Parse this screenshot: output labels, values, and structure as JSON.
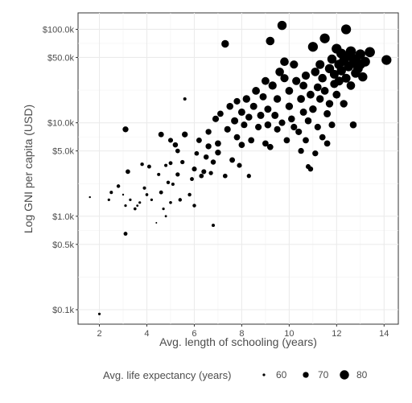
{
  "chart_data": {
    "type": "scatter",
    "xlabel": "Avg. length of schooling (years)",
    "ylabel": "Log GNI per capita (USD)",
    "x_ticks": [
      2,
      4,
      6,
      8,
      10,
      12,
      14
    ],
    "x_tick_labels": [
      "2",
      "4",
      "6",
      "8",
      "10",
      "12",
      "14"
    ],
    "y_ticks": [
      100,
      500,
      1000,
      5000,
      10000,
      50000,
      100000
    ],
    "y_tick_labels": [
      "$0.1k",
      "$0.5k",
      "$1.0k",
      "$5.0k",
      "$10.0k",
      "$50.0k",
      "$100.0k"
    ],
    "y_scale": "log",
    "xlim": [
      1.1,
      14.6
    ],
    "ylim": [
      70,
      150000
    ],
    "grid": true,
    "legend": {
      "title": "Avg. life expectancy (years)",
      "entries": [
        {
          "label": "60",
          "value": 60
        },
        {
          "label": "70",
          "value": 70
        },
        {
          "label": "80",
          "value": 80
        }
      ],
      "placement": "bottom"
    },
    "points": [
      [
        1.6,
        1600,
        58
      ],
      [
        2.0,
        90,
        60
      ],
      [
        2.4,
        1500,
        60
      ],
      [
        2.5,
        1800,
        62
      ],
      [
        2.8,
        2100,
        63
      ],
      [
        3.0,
        1700,
        58
      ],
      [
        3.1,
        1300,
        60
      ],
      [
        3.1,
        650,
        64
      ],
      [
        3.1,
        8500,
        70
      ],
      [
        3.2,
        3000,
        66
      ],
      [
        3.3,
        1500,
        60
      ],
      [
        3.5,
        1200,
        61
      ],
      [
        3.6,
        1300,
        59
      ],
      [
        3.7,
        1400,
        60
      ],
      [
        3.8,
        3600,
        63
      ],
      [
        3.9,
        2000,
        62
      ],
      [
        4.0,
        1700,
        61
      ],
      [
        4.1,
        3400,
        64
      ],
      [
        4.2,
        1500,
        60
      ],
      [
        4.4,
        850,
        57
      ],
      [
        4.5,
        2800,
        62
      ],
      [
        4.6,
        1800,
        64
      ],
      [
        4.6,
        7500,
        69
      ],
      [
        4.7,
        1200,
        60
      ],
      [
        4.8,
        1000,
        59
      ],
      [
        4.8,
        3500,
        62
      ],
      [
        4.9,
        2300,
        63
      ],
      [
        5.0,
        1400,
        61
      ],
      [
        5.0,
        3700,
        64
      ],
      [
        5.0,
        6500,
        67
      ],
      [
        5.1,
        2200,
        62
      ],
      [
        5.2,
        5800,
        68
      ],
      [
        5.3,
        2800,
        65
      ],
      [
        5.3,
        5000,
        66
      ],
      [
        5.4,
        1500,
        63
      ],
      [
        5.5,
        3800,
        65
      ],
      [
        5.6,
        7500,
        70
      ],
      [
        5.6,
        18000,
        62
      ],
      [
        5.8,
        1700,
        63
      ],
      [
        5.9,
        2500,
        64
      ],
      [
        6.0,
        1300,
        63
      ],
      [
        6.0,
        3200,
        67
      ],
      [
        6.1,
        4700,
        66
      ],
      [
        6.2,
        6500,
        69
      ],
      [
        6.3,
        2700,
        66
      ],
      [
        6.4,
        3000,
        67
      ],
      [
        6.5,
        4300,
        68
      ],
      [
        6.6,
        5600,
        70
      ],
      [
        6.6,
        8000,
        70
      ],
      [
        6.7,
        2900,
        65
      ],
      [
        6.8,
        800,
        62
      ],
      [
        6.8,
        3800,
        68
      ],
      [
        6.9,
        11000,
        72
      ],
      [
        7.0,
        4800,
        70
      ],
      [
        7.0,
        6000,
        71
      ],
      [
        7.1,
        12500,
        71
      ],
      [
        7.3,
        2700,
        66
      ],
      [
        7.3,
        70000,
        75
      ],
      [
        7.4,
        8500,
        72
      ],
      [
        7.5,
        15000,
        73
      ],
      [
        7.6,
        4000,
        69
      ],
      [
        7.7,
        10500,
        74
      ],
      [
        7.8,
        7000,
        71
      ],
      [
        7.8,
        17000,
        72
      ],
      [
        7.9,
        3500,
        67
      ],
      [
        8.0,
        5800,
        71
      ],
      [
        8.0,
        13000,
        74
      ],
      [
        8.1,
        9500,
        72
      ],
      [
        8.2,
        18000,
        75
      ],
      [
        8.3,
        2700,
        65
      ],
      [
        8.3,
        11500,
        73
      ],
      [
        8.4,
        6500,
        71
      ],
      [
        8.5,
        15000,
        74
      ],
      [
        8.6,
        22000,
        76
      ],
      [
        8.7,
        9000,
        72
      ],
      [
        8.8,
        12000,
        74
      ],
      [
        8.9,
        19000,
        74
      ],
      [
        9.0,
        6000,
        71
      ],
      [
        9.0,
        28000,
        76
      ],
      [
        9.1,
        9500,
        73
      ],
      [
        9.1,
        14000,
        74
      ],
      [
        9.2,
        5500,
        71
      ],
      [
        9.2,
        75000,
        78
      ],
      [
        9.3,
        25000,
        77
      ],
      [
        9.4,
        12000,
        74
      ],
      [
        9.5,
        8500,
        72
      ],
      [
        9.5,
        18000,
        75
      ],
      [
        9.6,
        35000,
        78
      ],
      [
        9.7,
        10000,
        72
      ],
      [
        9.7,
        110000,
        80
      ],
      [
        9.8,
        30000,
        77
      ],
      [
        9.8,
        45000,
        78
      ],
      [
        9.9,
        6500,
        71
      ],
      [
        10.0,
        15000,
        75
      ],
      [
        10.0,
        22000,
        76
      ],
      [
        10.1,
        11000,
        73
      ],
      [
        10.2,
        9000,
        72
      ],
      [
        10.2,
        42000,
        77
      ],
      [
        10.3,
        28000,
        77
      ],
      [
        10.4,
        8000,
        72
      ],
      [
        10.5,
        18000,
        76
      ],
      [
        10.5,
        5000,
        70
      ],
      [
        10.6,
        25000,
        76
      ],
      [
        10.6,
        13000,
        74
      ],
      [
        10.7,
        32000,
        77
      ],
      [
        10.7,
        6500,
        71
      ],
      [
        10.8,
        3400,
        67
      ],
      [
        10.8,
        10500,
        73
      ],
      [
        10.9,
        3200,
        68
      ],
      [
        10.9,
        20000,
        76
      ],
      [
        11.0,
        65000,
        82
      ],
      [
        11.0,
        14000,
        75
      ],
      [
        11.1,
        35000,
        78
      ],
      [
        11.1,
        4700,
        70
      ],
      [
        11.2,
        24000,
        76
      ],
      [
        11.2,
        9000,
        72
      ],
      [
        11.3,
        18000,
        75
      ],
      [
        11.3,
        42000,
        79
      ],
      [
        11.4,
        7000,
        71
      ],
      [
        11.4,
        30000,
        78
      ],
      [
        11.5,
        80000,
        82
      ],
      [
        11.5,
        22000,
        76
      ],
      [
        11.6,
        12500,
        74
      ],
      [
        11.6,
        6000,
        71
      ],
      [
        11.7,
        38000,
        80
      ],
      [
        11.7,
        16000,
        75
      ],
      [
        11.8,
        48000,
        80
      ],
      [
        11.8,
        9500,
        72
      ],
      [
        11.9,
        26000,
        77
      ],
      [
        11.9,
        33000,
        79
      ],
      [
        12.0,
        62000,
        82
      ],
      [
        12.0,
        20000,
        76
      ],
      [
        12.1,
        42000,
        81
      ],
      [
        12.1,
        28000,
        79
      ],
      [
        12.2,
        55000,
        82
      ],
      [
        12.2,
        36000,
        80
      ],
      [
        12.3,
        46000,
        81
      ],
      [
        12.3,
        16000,
        75
      ],
      [
        12.4,
        100000,
        82
      ],
      [
        12.4,
        30000,
        79
      ],
      [
        12.5,
        52000,
        82
      ],
      [
        12.5,
        40000,
        81
      ],
      [
        12.6,
        58000,
        83
      ],
      [
        12.6,
        25000,
        78
      ],
      [
        12.7,
        44000,
        81
      ],
      [
        12.7,
        9500,
        73
      ],
      [
        12.8,
        34000,
        80
      ],
      [
        12.8,
        48000,
        82
      ],
      [
        12.9,
        38000,
        81
      ],
      [
        13.0,
        54000,
        82
      ],
      [
        13.0,
        42000,
        81
      ],
      [
        13.1,
        31000,
        80
      ],
      [
        13.2,
        45000,
        82
      ],
      [
        13.4,
        57000,
        83
      ],
      [
        14.1,
        47000,
        82
      ]
    ]
  }
}
